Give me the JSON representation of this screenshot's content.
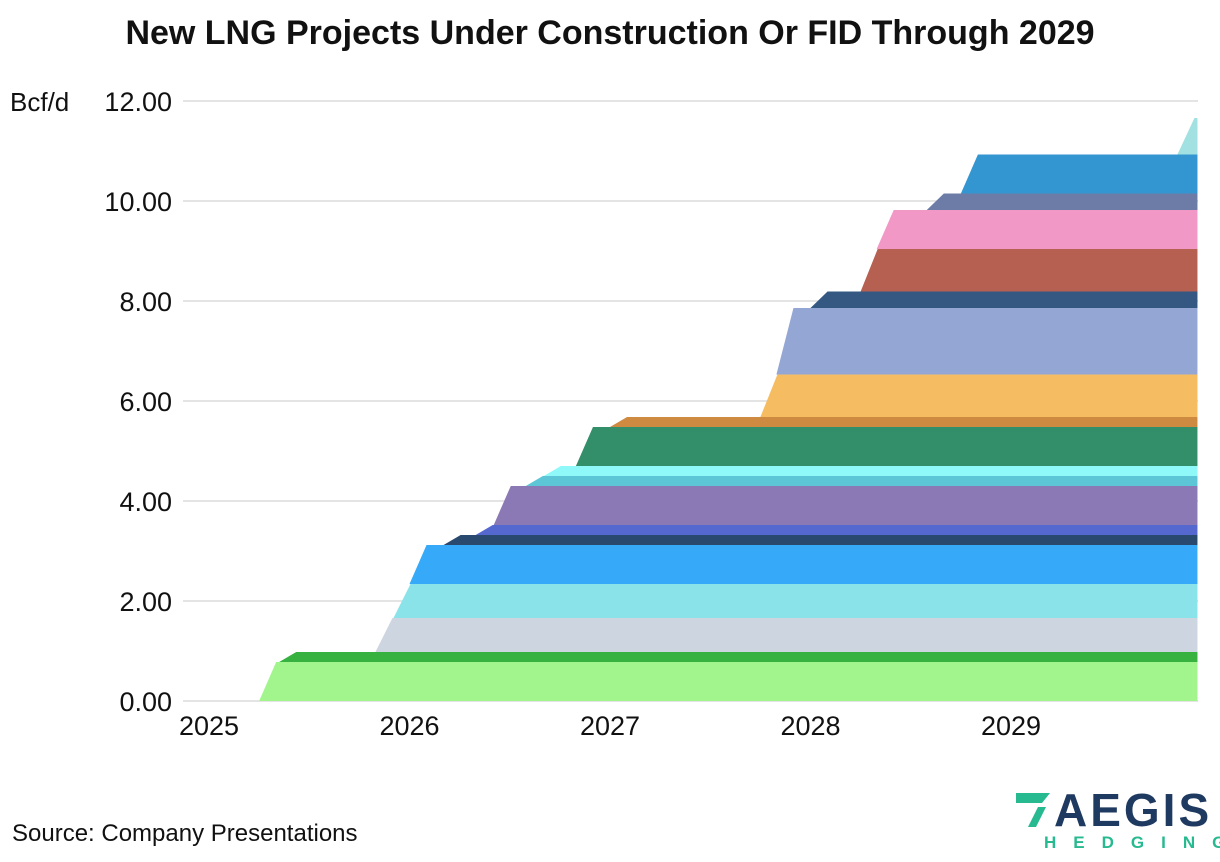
{
  "chart_data": {
    "type": "area",
    "title": "New LNG Projects Under Construction Or FID Through 2029",
    "ylabel": "Bcf/d",
    "ylim": [
      0,
      12
    ],
    "y_ticks": [
      "0.00",
      "2.00",
      "4.00",
      "6.00",
      "8.00",
      "10.00",
      "12.00"
    ],
    "x_ticks": [
      "2025",
      "2026",
      "2027",
      "2028",
      "2029"
    ],
    "x_range": [
      2024.65,
      2029.93
    ],
    "grid": "horizontal",
    "legend": "none",
    "stacking": "stacked",
    "series": [
      {
        "start": 2025.25,
        "capacity": 0.78,
        "color": "#a2f58d"
      },
      {
        "start": 2025.35,
        "capacity": 0.2,
        "color": "#37b13f"
      },
      {
        "start": 2025.83,
        "capacity": 0.68,
        "color": "#cdd5e0"
      },
      {
        "start": 2025.92,
        "capacity": 0.68,
        "color": "#89e3e8"
      },
      {
        "start": 2026.0,
        "capacity": 0.78,
        "color": "#36aaf8"
      },
      {
        "start": 2026.17,
        "capacity": 0.2,
        "color": "#294a6e"
      },
      {
        "start": 2026.33,
        "capacity": 0.2,
        "color": "#5568d0"
      },
      {
        "start": 2026.42,
        "capacity": 0.78,
        "color": "#8b79b5"
      },
      {
        "start": 2026.58,
        "capacity": 0.2,
        "color": "#5cc6d6"
      },
      {
        "start": 2026.67,
        "capacity": 0.2,
        "color": "#8ef9f8"
      },
      {
        "start": 2026.83,
        "capacity": 0.78,
        "color": "#338e6a"
      },
      {
        "start": 2027.0,
        "capacity": 0.2,
        "color": "#cf8a42"
      },
      {
        "start": 2027.75,
        "capacity": 0.85,
        "color": "#f5bc62"
      },
      {
        "start": 2027.83,
        "capacity": 1.33,
        "color": "#94a7d4"
      },
      {
        "start": 2028.0,
        "capacity": 0.33,
        "color": "#355882"
      },
      {
        "start": 2028.25,
        "capacity": 0.85,
        "color": "#b66052"
      },
      {
        "start": 2028.33,
        "capacity": 0.78,
        "color": "#f298c6"
      },
      {
        "start": 2028.58,
        "capacity": 0.33,
        "color": "#6c7ca7"
      },
      {
        "start": 2028.75,
        "capacity": 0.78,
        "color": "#3496d1"
      },
      {
        "start": 2029.83,
        "capacity": 0.73,
        "color": "#a2e1e1"
      }
    ]
  },
  "footer": {
    "source": "Source: Company Presentations",
    "logo_text": "AEGIS",
    "logo_subtext": "HEDGING",
    "logo_colors": {
      "word": "#1f3a60",
      "accent": "#27b98f"
    }
  }
}
